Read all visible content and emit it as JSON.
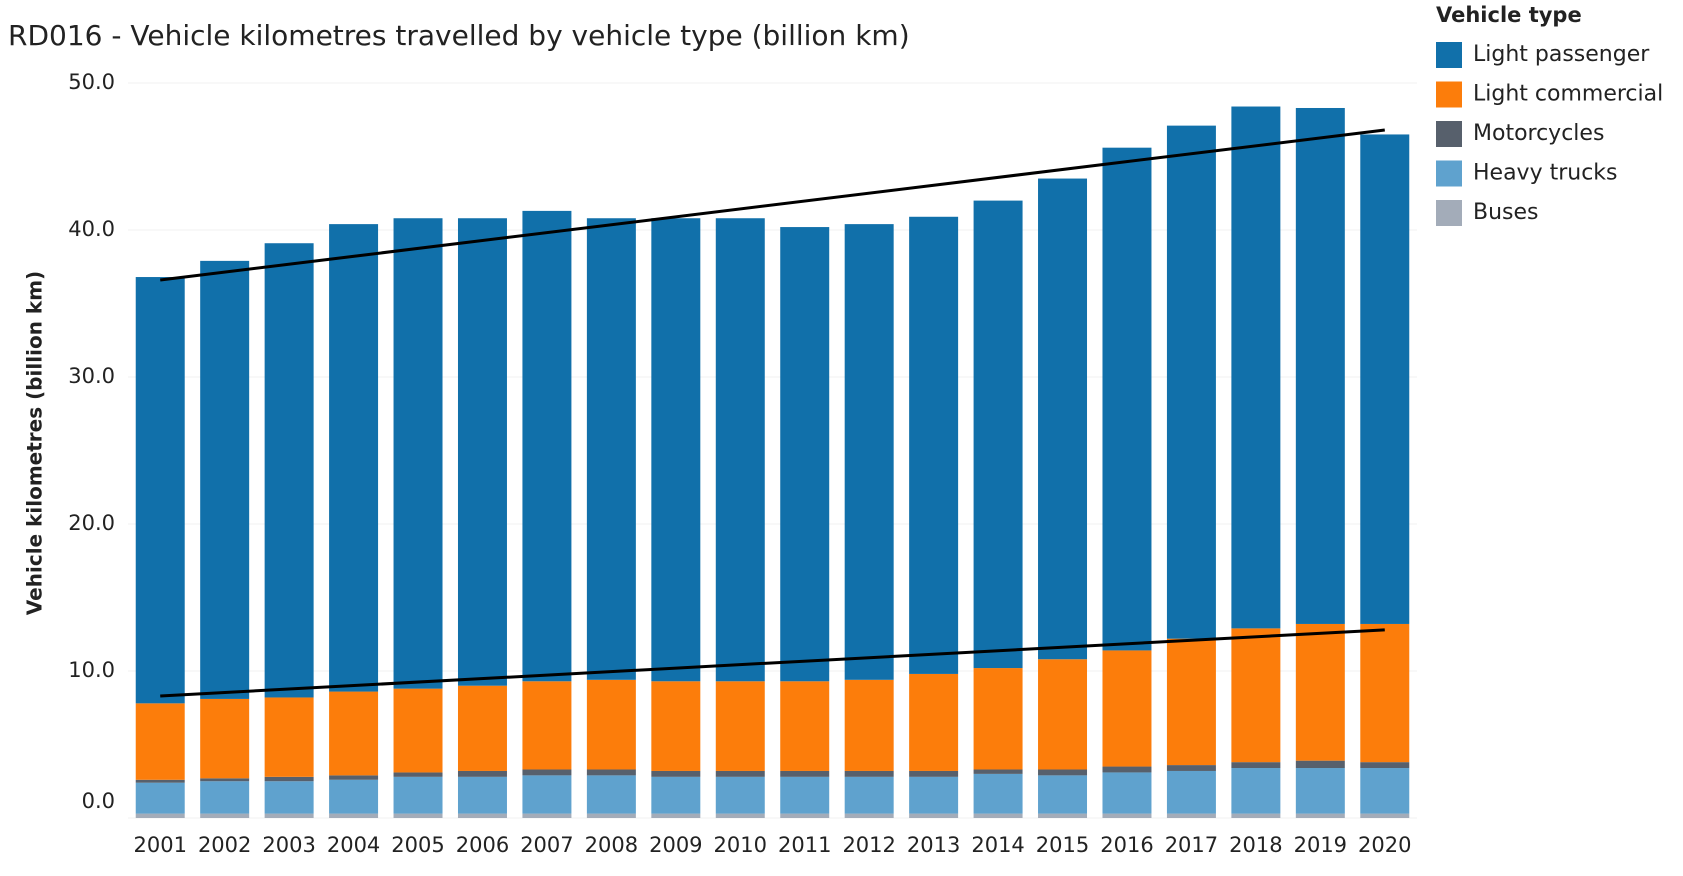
{
  "chart_data": {
    "type": "stacked_bar",
    "title": "RD016 - Vehicle kilometres travelled by vehicle type (billion km)",
    "y_axis_label": "Vehicle kilometres (billion km)",
    "legend_title": "Vehicle type",
    "categories": [
      "2001",
      "2002",
      "2003",
      "2004",
      "2005",
      "2006",
      "2007",
      "2008",
      "2009",
      "2010",
      "2011",
      "2012",
      "2013",
      "2014",
      "2015",
      "2016",
      "2017",
      "2018",
      "2019",
      "2020"
    ],
    "series": [
      {
        "name": "Buses",
        "color": "#a3acb9",
        "values": [
          0.3,
          0.3,
          0.3,
          0.3,
          0.3,
          0.3,
          0.3,
          0.3,
          0.3,
          0.3,
          0.3,
          0.3,
          0.3,
          0.3,
          0.3,
          0.3,
          0.3,
          0.3,
          0.3,
          0.3
        ]
      },
      {
        "name": "Heavy trucks",
        "color": "#5fa2ce",
        "values": [
          2.1,
          2.2,
          2.2,
          2.3,
          2.5,
          2.5,
          2.6,
          2.6,
          2.5,
          2.5,
          2.5,
          2.5,
          2.5,
          2.7,
          2.6,
          2.8,
          2.9,
          3.1,
          3.1,
          3.1
        ]
      },
      {
        "name": "Motorcycles",
        "color": "#57606c",
        "values": [
          0.2,
          0.2,
          0.3,
          0.3,
          0.3,
          0.4,
          0.4,
          0.4,
          0.4,
          0.4,
          0.4,
          0.4,
          0.4,
          0.3,
          0.4,
          0.4,
          0.4,
          0.4,
          0.5,
          0.4
        ]
      },
      {
        "name": "Light commercial",
        "color": "#fc7d0b",
        "values": [
          5.2,
          5.4,
          5.4,
          5.7,
          5.7,
          5.8,
          6.0,
          6.1,
          6.1,
          6.1,
          6.1,
          6.2,
          6.6,
          6.9,
          7.5,
          7.9,
          8.6,
          9.1,
          9.3,
          9.4
        ]
      },
      {
        "name": "Light passenger",
        "color": "#1170aa",
        "values": [
          29.0,
          29.8,
          30.9,
          31.8,
          32.0,
          31.8,
          32.0,
          31.4,
          31.5,
          31.5,
          30.9,
          31.0,
          31.1,
          31.8,
          32.7,
          34.2,
          34.9,
          35.5,
          35.1,
          33.3
        ]
      }
    ],
    "trend_lines": [
      {
        "color": "#000000",
        "values": [
          36.6,
          46.8
        ]
      },
      {
        "color": "#000000",
        "values": [
          8.3,
          12.8
        ]
      }
    ],
    "ylim": [
      0,
      50
    ],
    "yticks": [
      {
        "value": 0,
        "label": "0.0"
      },
      {
        "value": 10,
        "label": "10.0"
      },
      {
        "value": 20,
        "label": "20.0"
      },
      {
        "value": 30,
        "label": "30.0"
      },
      {
        "value": 40,
        "label": "40.0"
      },
      {
        "value": 50,
        "label": "50.0"
      }
    ],
    "grid": true
  }
}
